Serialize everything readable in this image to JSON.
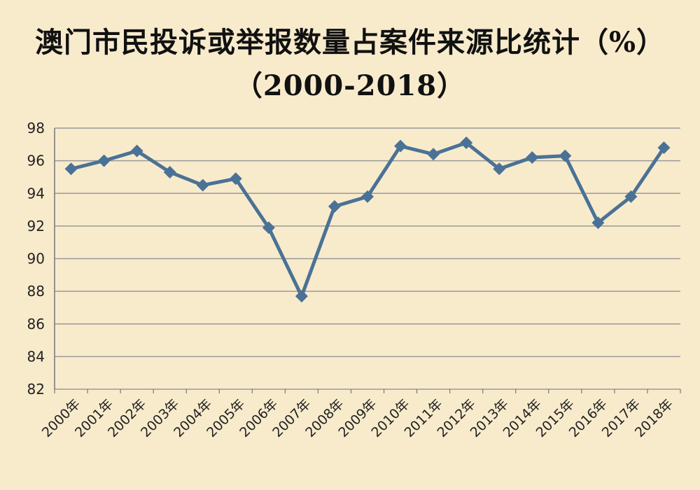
{
  "title_line1": "澳门市民投诉或举报数量占案件来源比统计（%）",
  "title_line2": "（2000-2018）",
  "colors": {
    "background": "#f8ebcc",
    "line": "#4a7296",
    "grid": "#9a9a9a",
    "axis": "#777777"
  },
  "chart_data": {
    "type": "line",
    "title": "澳门市民投诉或举报数量占案件来源比统计（%）（2000-2018）",
    "xlabel": "",
    "ylabel": "",
    "ylim": [
      82,
      98
    ],
    "yticks": [
      82,
      84,
      86,
      88,
      90,
      92,
      94,
      96,
      98
    ],
    "grid": true,
    "legend": "none",
    "marker": "diamond",
    "categories": [
      "2000年",
      "2001年",
      "2002年",
      "2003年",
      "2004年",
      "2005年",
      "2006年",
      "2007年",
      "2008年",
      "2009年",
      "2010年",
      "2011年",
      "2012年",
      "2013年",
      "2014年",
      "2015年",
      "2016年",
      "2017年",
      "2018年"
    ],
    "series": [
      {
        "values": [
          95.5,
          96.0,
          96.6,
          95.3,
          94.5,
          94.9,
          91.9,
          87.7,
          93.2,
          93.8,
          96.9,
          96.4,
          97.1,
          95.5,
          96.2,
          96.3,
          92.2,
          93.8,
          96.8
        ]
      }
    ]
  }
}
